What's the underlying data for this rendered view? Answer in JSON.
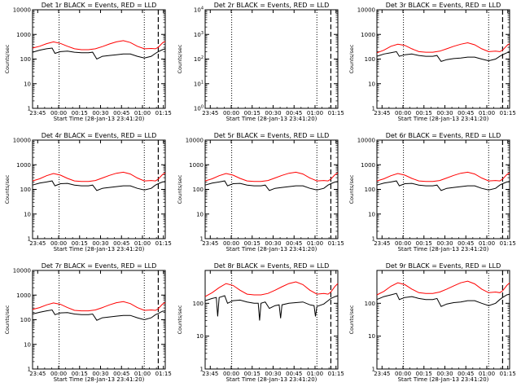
{
  "figure": {
    "x_axis_label": "Start Time (28-Jan-13 23:41:20)",
    "y_axis_label": "Counts/sec",
    "x_tick_labels": [
      "23:45",
      "00:00",
      "00:15",
      "00:30",
      "00:45",
      "01:00",
      "01:15"
    ],
    "series_colors": {
      "events": "#000000",
      "lld": "#ff0000"
    }
  },
  "chart_data": [
    {
      "type": "line",
      "title": "Det 1r BLACK = Events, RED = LLD",
      "yscale": "log",
      "ylim": [
        1,
        10000
      ],
      "y_tick_labels": [
        "1",
        "10",
        "100",
        "1000",
        "10000"
      ],
      "x_unit": "minutes since 23:41:20",
      "xlim": [
        0,
        95
      ],
      "dotted_markers": [
        19,
        80
      ],
      "dashed_marker": 90,
      "series": [
        {
          "color": "red",
          "x": [
            0,
            5,
            10,
            15,
            20,
            25,
            30,
            35,
            40,
            45,
            50,
            55,
            60,
            65,
            70,
            75,
            80,
            85,
            88,
            90,
            93,
            95
          ],
          "values": [
            280,
            330,
            420,
            500,
            430,
            330,
            260,
            240,
            240,
            260,
            320,
            410,
            500,
            560,
            470,
            330,
            260,
            270,
            260,
            300,
            450,
            520
          ]
        },
        {
          "color": "black",
          "x": [
            0,
            5,
            10,
            14,
            16,
            20,
            25,
            30,
            35,
            40,
            43,
            46,
            50,
            55,
            60,
            65,
            70,
            75,
            80,
            85,
            88,
            90,
            93,
            95
          ],
          "values": [
            190,
            230,
            260,
            280,
            170,
            200,
            210,
            190,
            180,
            180,
            190,
            100,
            130,
            140,
            150,
            160,
            160,
            130,
            110,
            130,
            170,
            200,
            240,
            260
          ]
        }
      ]
    },
    {
      "type": "line",
      "title": "Det 2r BLACK = Events, RED = LLD",
      "yscale": "log",
      "ylim": [
        1,
        10000
      ],
      "y_tick_labels": [
        "10^0",
        "10^1",
        "10^2",
        "10^3",
        "10^4"
      ],
      "x_unit": "minutes since 23:41:20",
      "xlim": [
        0,
        95
      ],
      "dotted_markers": [
        19,
        80
      ],
      "dashed_marker": 90,
      "series": []
    },
    {
      "type": "line",
      "title": "Det 3r BLACK = Events, RED = LLD",
      "yscale": "log",
      "ylim": [
        1,
        10000
      ],
      "y_tick_labels": [
        "1",
        "10",
        "100",
        "1000",
        "10000"
      ],
      "x_unit": "minutes since 23:41:20",
      "xlim": [
        0,
        95
      ],
      "dotted_markers": [
        19,
        80
      ],
      "dashed_marker": 90,
      "series": [
        {
          "color": "red",
          "x": [
            0,
            5,
            10,
            15,
            20,
            25,
            30,
            35,
            40,
            45,
            50,
            55,
            60,
            65,
            70,
            75,
            80,
            85,
            88,
            90,
            93,
            95
          ],
          "values": [
            180,
            230,
            330,
            400,
            360,
            260,
            200,
            190,
            190,
            210,
            260,
            330,
            400,
            460,
            380,
            260,
            200,
            210,
            200,
            230,
            350,
            420
          ]
        },
        {
          "color": "black",
          "x": [
            0,
            5,
            10,
            14,
            16,
            20,
            25,
            30,
            35,
            40,
            43,
            46,
            50,
            55,
            60,
            65,
            70,
            75,
            80,
            85,
            88,
            90,
            93,
            95
          ],
          "values": [
            130,
            160,
            180,
            200,
            130,
            150,
            160,
            140,
            130,
            130,
            140,
            80,
            95,
            105,
            110,
            120,
            120,
            100,
            85,
            100,
            130,
            150,
            180,
            190
          ]
        }
      ]
    },
    {
      "type": "line",
      "title": "Det 4r BLACK = Events, RED = LLD",
      "yscale": "log",
      "ylim": [
        1,
        10000
      ],
      "y_tick_labels": [
        "1",
        "10",
        "100",
        "1000",
        "10000"
      ],
      "x_unit": "minutes since 23:41:20",
      "xlim": [
        0,
        95
      ],
      "dotted_markers": [
        19,
        80
      ],
      "dashed_marker": 90,
      "series": [
        {
          "color": "red",
          "x": [
            0,
            5,
            10,
            15,
            20,
            25,
            30,
            35,
            40,
            45,
            50,
            55,
            60,
            65,
            70,
            75,
            80,
            85,
            88,
            90,
            93,
            95
          ],
          "values": [
            220,
            270,
            360,
            440,
            380,
            280,
            220,
            210,
            210,
            230,
            290,
            370,
            450,
            500,
            420,
            290,
            220,
            230,
            220,
            260,
            400,
            470
          ]
        },
        {
          "color": "black",
          "x": [
            0,
            5,
            10,
            14,
            16,
            20,
            25,
            30,
            35,
            40,
            43,
            46,
            50,
            55,
            60,
            65,
            70,
            75,
            80,
            85,
            88,
            90,
            93,
            95
          ],
          "values": [
            150,
            180,
            200,
            220,
            140,
            170,
            175,
            150,
            140,
            140,
            150,
            90,
            110,
            120,
            130,
            140,
            140,
            110,
            95,
            110,
            150,
            170,
            200,
            210
          ]
        }
      ]
    },
    {
      "type": "line",
      "title": "Det 5r BLACK = Events, RED = LLD",
      "yscale": "log",
      "ylim": [
        1,
        10000
      ],
      "y_tick_labels": [
        "1",
        "10",
        "100",
        "1000",
        "10000"
      ],
      "x_unit": "minutes since 23:41:20",
      "xlim": [
        0,
        95
      ],
      "dotted_markers": [
        19,
        80
      ],
      "dashed_marker": 90,
      "series": [
        {
          "color": "red",
          "x": [
            0,
            5,
            10,
            15,
            20,
            25,
            30,
            35,
            40,
            45,
            50,
            55,
            60,
            65,
            70,
            75,
            80,
            85,
            88,
            90,
            93,
            95
          ],
          "values": [
            220,
            270,
            360,
            440,
            380,
            280,
            220,
            210,
            210,
            230,
            290,
            370,
            450,
            500,
            420,
            290,
            220,
            230,
            220,
            260,
            400,
            470
          ]
        },
        {
          "color": "black",
          "x": [
            0,
            5,
            10,
            14,
            16,
            20,
            25,
            30,
            35,
            40,
            43,
            46,
            50,
            55,
            60,
            65,
            70,
            75,
            80,
            85,
            88,
            90,
            93,
            95
          ],
          "values": [
            150,
            180,
            200,
            220,
            140,
            170,
            175,
            150,
            140,
            140,
            150,
            90,
            110,
            120,
            130,
            140,
            140,
            110,
            95,
            110,
            150,
            170,
            200,
            210
          ]
        }
      ]
    },
    {
      "type": "line",
      "title": "Det 6r BLACK = Events, RED = LLD",
      "yscale": "log",
      "ylim": [
        1,
        10000
      ],
      "y_tick_labels": [
        "1",
        "10",
        "100",
        "1000",
        "10000"
      ],
      "x_unit": "minutes since 23:41:20",
      "xlim": [
        0,
        95
      ],
      "dotted_markers": [
        19,
        80
      ],
      "dashed_marker": 90,
      "series": [
        {
          "color": "red",
          "x": [
            0,
            5,
            10,
            15,
            20,
            25,
            30,
            35,
            40,
            45,
            50,
            55,
            60,
            65,
            70,
            75,
            80,
            85,
            88,
            90,
            93,
            95
          ],
          "values": [
            220,
            270,
            360,
            440,
            380,
            280,
            220,
            210,
            210,
            230,
            290,
            370,
            450,
            500,
            420,
            290,
            220,
            230,
            220,
            260,
            400,
            470
          ]
        },
        {
          "color": "black",
          "x": [
            0,
            5,
            10,
            14,
            16,
            20,
            25,
            30,
            35,
            40,
            43,
            46,
            50,
            55,
            60,
            65,
            70,
            75,
            80,
            85,
            88,
            90,
            93,
            95
          ],
          "values": [
            150,
            180,
            200,
            220,
            140,
            170,
            175,
            150,
            140,
            140,
            150,
            90,
            110,
            120,
            130,
            140,
            140,
            110,
            95,
            110,
            150,
            170,
            200,
            210
          ]
        }
      ]
    },
    {
      "type": "line",
      "title": "Det 7r BLACK = Events, RED = LLD",
      "yscale": "log",
      "ylim": [
        1,
        10000
      ],
      "y_tick_labels": [
        "1",
        "10",
        "100",
        "1000",
        "10000"
      ],
      "x_unit": "minutes since 23:41:20",
      "xlim": [
        0,
        95
      ],
      "dotted_markers": [
        19,
        80
      ],
      "dashed_marker": 90,
      "series": [
        {
          "color": "red",
          "x": [
            0,
            5,
            10,
            15,
            20,
            25,
            30,
            35,
            40,
            45,
            50,
            55,
            60,
            65,
            70,
            75,
            80,
            85,
            88,
            90,
            93,
            95
          ],
          "values": [
            260,
            310,
            400,
            480,
            420,
            310,
            240,
            230,
            230,
            250,
            310,
            400,
            490,
            540,
            450,
            310,
            240,
            250,
            240,
            280,
            430,
            500
          ]
        },
        {
          "color": "black",
          "x": [
            0,
            5,
            10,
            14,
            16,
            20,
            25,
            30,
            35,
            40,
            43,
            46,
            50,
            55,
            60,
            65,
            70,
            75,
            80,
            85,
            88,
            90,
            93,
            95
          ],
          "values": [
            170,
            200,
            230,
            250,
            160,
            190,
            195,
            170,
            160,
            160,
            170,
            95,
            120,
            130,
            140,
            150,
            150,
            120,
            100,
            120,
            160,
            180,
            220,
            230
          ]
        }
      ]
    },
    {
      "type": "line",
      "title": "Det 8r BLACK = Events, RED = LLD",
      "yscale": "log",
      "ylim": [
        1,
        1000
      ],
      "y_tick_labels": [
        "1",
        "10",
        "100"
      ],
      "x_unit": "minutes since 23:41:20",
      "xlim": [
        0,
        95
      ],
      "dotted_markers": [
        19,
        80
      ],
      "dashed_marker": 90,
      "series": [
        {
          "color": "red",
          "x": [
            0,
            5,
            10,
            15,
            20,
            25,
            30,
            35,
            40,
            45,
            50,
            55,
            60,
            65,
            70,
            75,
            80,
            85,
            88,
            90,
            93,
            95
          ],
          "values": [
            160,
            210,
            300,
            400,
            350,
            250,
            190,
            180,
            180,
            200,
            250,
            320,
            400,
            450,
            370,
            250,
            190,
            200,
            190,
            220,
            330,
            400
          ]
        },
        {
          "color": "black",
          "x": [
            0,
            5,
            8,
            9,
            10,
            14,
            16,
            20,
            25,
            30,
            35,
            38,
            39,
            40,
            43,
            46,
            50,
            53,
            54,
            55,
            60,
            65,
            70,
            75,
            78,
            79,
            80,
            85,
            88,
            90,
            93,
            95
          ],
          "values": [
            120,
            140,
            150,
            40,
            150,
            170,
            100,
            120,
            125,
            110,
            100,
            100,
            30,
            100,
            110,
            70,
            85,
            90,
            35,
            90,
            100,
            105,
            110,
            90,
            85,
            40,
            80,
            95,
            120,
            140,
            160,
            170
          ]
        }
      ]
    },
    {
      "type": "line",
      "title": "Det 9r BLACK = Events, RED = LLD",
      "yscale": "log",
      "ylim": [
        1,
        1000
      ],
      "y_tick_labels": [
        "1",
        "10",
        "100"
      ],
      "x_unit": "minutes since 23:41:20",
      "xlim": [
        0,
        95
      ],
      "dotted_markers": [
        19,
        80
      ],
      "dashed_marker": 90,
      "series": [
        {
          "color": "red",
          "x": [
            0,
            5,
            10,
            15,
            20,
            25,
            30,
            35,
            40,
            45,
            50,
            55,
            60,
            65,
            70,
            75,
            80,
            85,
            88,
            90,
            93,
            95
          ],
          "values": [
            180,
            230,
            330,
            420,
            370,
            270,
            210,
            200,
            200,
            220,
            270,
            340,
            420,
            470,
            390,
            270,
            210,
            220,
            210,
            240,
            350,
            420
          ]
        },
        {
          "color": "black",
          "x": [
            0,
            5,
            10,
            14,
            16,
            20,
            25,
            30,
            35,
            40,
            43,
            46,
            50,
            55,
            60,
            65,
            70,
            75,
            80,
            85,
            88,
            90,
            93,
            95
          ],
          "values": [
            130,
            160,
            180,
            200,
            130,
            150,
            160,
            140,
            130,
            130,
            140,
            80,
            95,
            105,
            110,
            120,
            120,
            100,
            85,
            100,
            130,
            150,
            180,
            190
          ]
        }
      ]
    }
  ]
}
